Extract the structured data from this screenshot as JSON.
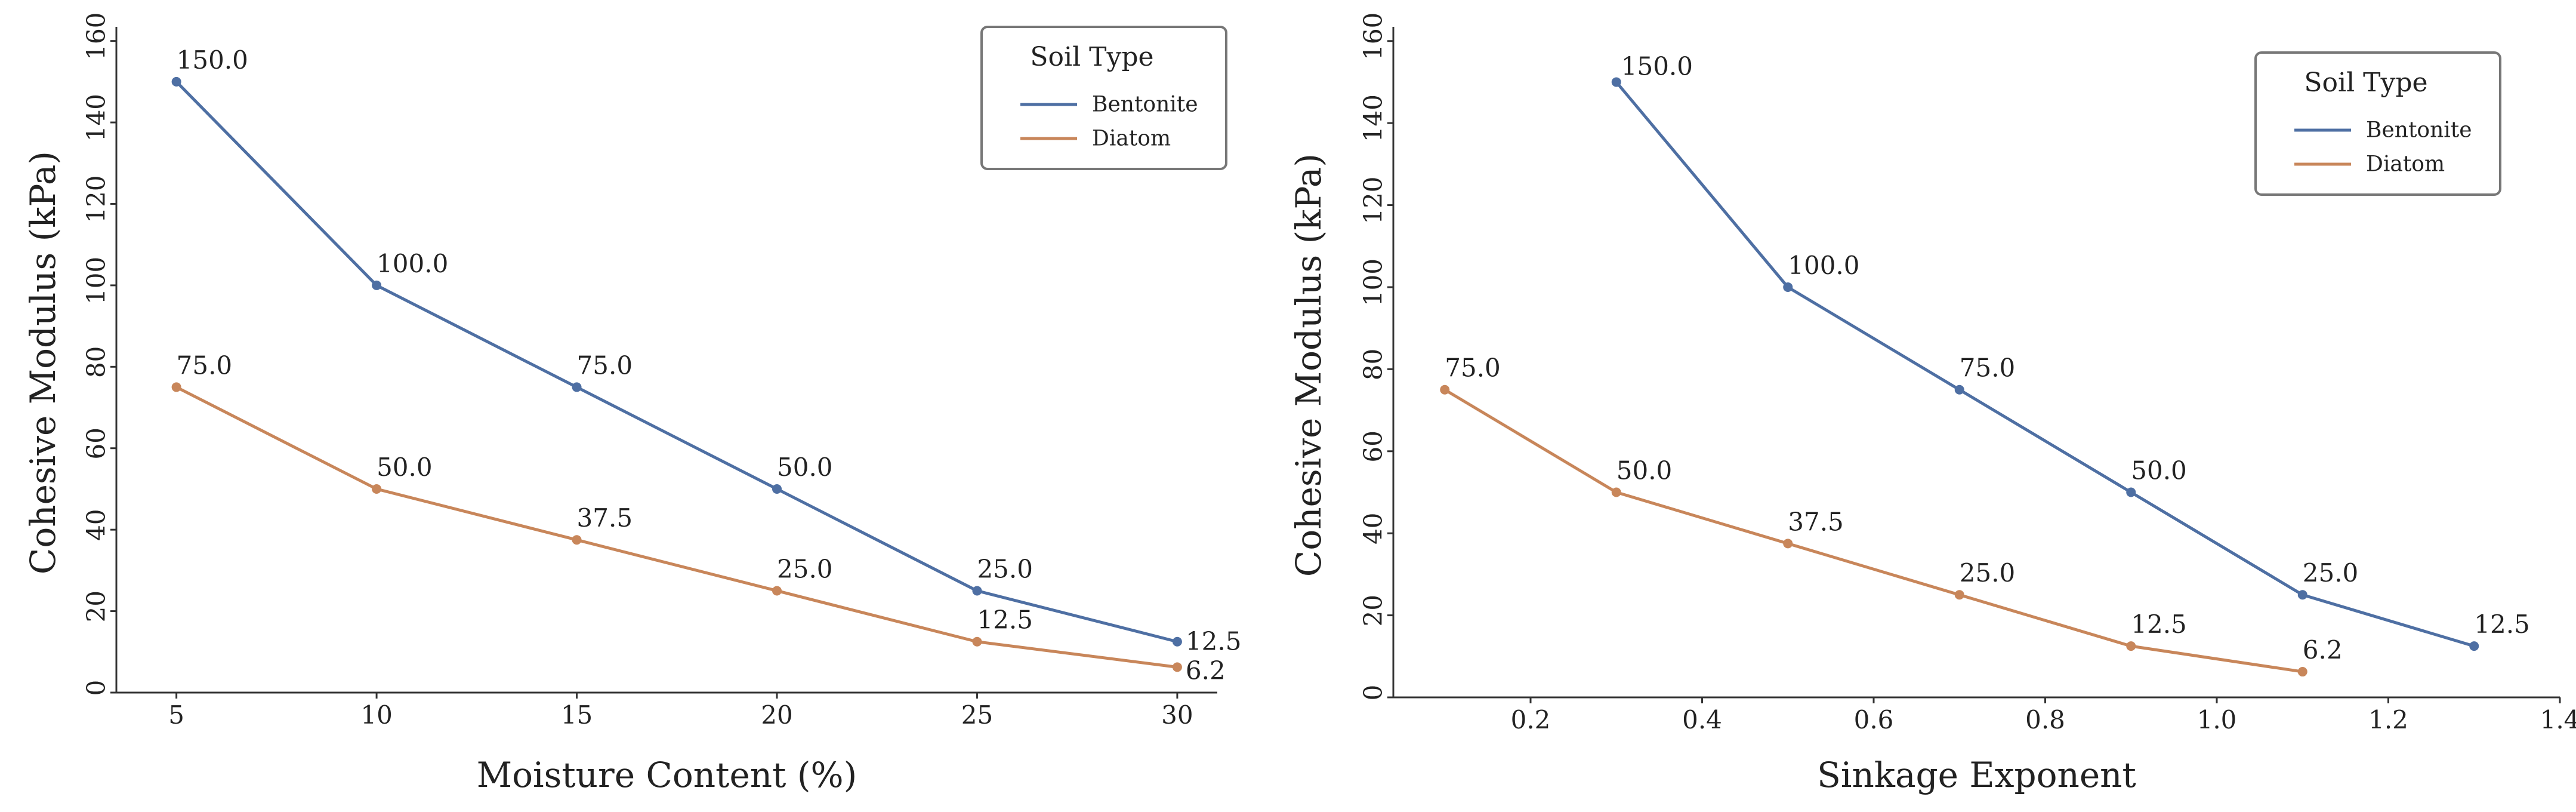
{
  "colors": {
    "Bentonite": "#4e6fa3",
    "Diatom": "#c8865a",
    "axis": "#333333"
  },
  "chart_data": [
    {
      "type": "line",
      "title": "",
      "xlabel": "Moisture Content (%)",
      "ylabel": "Cohesive Modulus (kPa)",
      "xlim": [
        3.5,
        31
      ],
      "ylim": [
        0,
        162
      ],
      "xticks": [
        5,
        10,
        15,
        20,
        25,
        30
      ],
      "yticks": [
        0,
        20,
        40,
        60,
        80,
        100,
        120,
        140,
        160
      ],
      "xtick_labels": [
        "5",
        "10",
        "15",
        "20",
        "25",
        "30"
      ],
      "ytick_labels": [
        "0",
        "20",
        "40",
        "60",
        "80",
        "100",
        "120",
        "140",
        "160"
      ],
      "legend": {
        "title": "Soil Type",
        "position": "top-right"
      },
      "series": [
        {
          "name": "Bentonite",
          "x": [
            5,
            10,
            15,
            20,
            25,
            30
          ],
          "y": [
            150,
            100,
            75,
            50,
            25,
            12.5
          ],
          "labels": [
            "150.0",
            "100.0",
            "75.0",
            "50.0",
            "25.0",
            "12.5"
          ]
        },
        {
          "name": "Diatom",
          "x": [
            5,
            10,
            15,
            20,
            25,
            30
          ],
          "y": [
            75,
            50,
            37.5,
            25,
            12.5,
            6.25
          ],
          "labels": [
            "75.0",
            "50.0",
            "37.5",
            "25.0",
            "12.5",
            "6.2"
          ]
        }
      ]
    },
    {
      "type": "line",
      "title": "",
      "xlabel": "Sinkage Exponent",
      "ylabel": "Cohesive Modulus (kPa)",
      "xlim": [
        0.04,
        1.4
      ],
      "ylim": [
        0,
        162
      ],
      "xticks": [
        0.2,
        0.4,
        0.6,
        0.8,
        1.0,
        1.2,
        1.4
      ],
      "yticks": [
        0,
        20,
        40,
        60,
        80,
        100,
        120,
        140,
        160
      ],
      "xtick_labels": [
        "0.2",
        "0.4",
        "0.6",
        "0.8",
        "1.0",
        "1.2",
        "1.4"
      ],
      "ytick_labels": [
        "0",
        "20",
        "40",
        "60",
        "80",
        "100",
        "120",
        "140",
        "160"
      ],
      "legend": {
        "title": "Soil Type",
        "position": "top-right"
      },
      "series": [
        {
          "name": "Bentonite",
          "x": [
            0.3,
            0.5,
            0.7,
            0.9,
            1.1,
            1.3
          ],
          "y": [
            150,
            100,
            75,
            50,
            25,
            12.5
          ],
          "labels": [
            "150.0",
            "100.0",
            "75.0",
            "50.0",
            "25.0",
            "12.5"
          ]
        },
        {
          "name": "Diatom",
          "x": [
            0.1,
            0.3,
            0.5,
            0.7,
            0.9,
            1.1
          ],
          "y": [
            75,
            50,
            37.5,
            25,
            12.5,
            6.25
          ],
          "labels": [
            "75.0",
            "50.0",
            "37.5",
            "25.0",
            "12.5",
            "6.2"
          ]
        }
      ]
    }
  ]
}
